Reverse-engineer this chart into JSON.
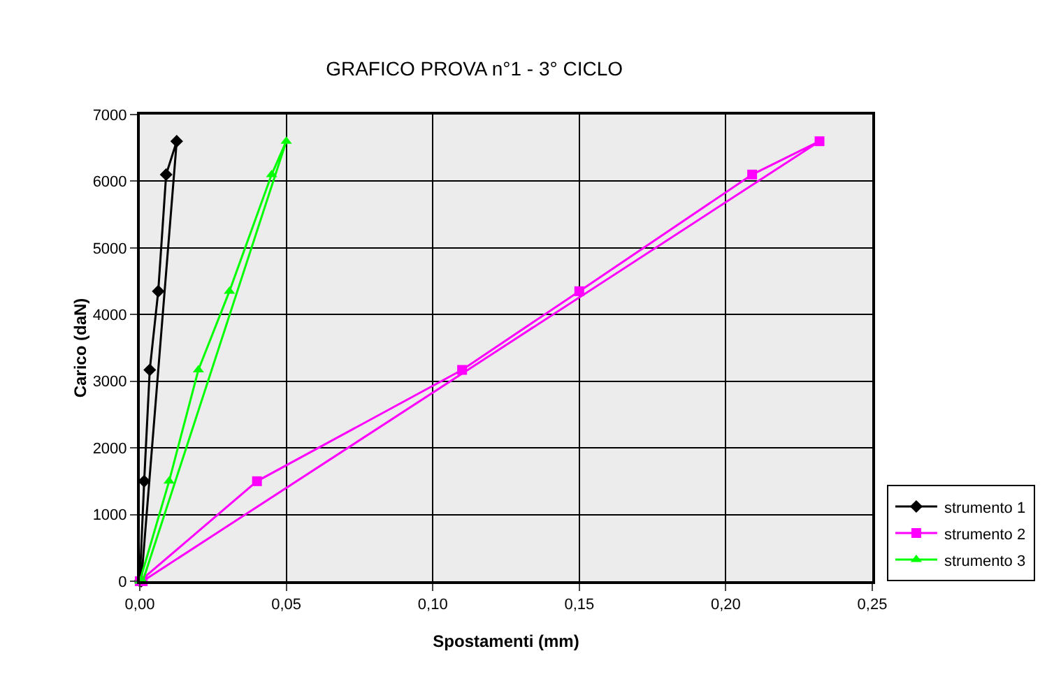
{
  "chart_data": {
    "type": "line",
    "title": "GRAFICO PROVA n°1 - 3° CICLO",
    "xlabel": "Spostamenti (mm)",
    "ylabel": "Carico (daN)",
    "xlim": [
      0,
      0.25
    ],
    "xticks": [
      {
        "value": 0,
        "label": "0,00"
      },
      {
        "value": 0.05,
        "label": "0,05"
      },
      {
        "value": 0.1,
        "label": "0,10"
      },
      {
        "value": 0.15,
        "label": "0,15"
      },
      {
        "value": 0.2,
        "label": "0,20"
      },
      {
        "value": 0.25,
        "label": "0,25"
      }
    ],
    "ylim": [
      0,
      7000
    ],
    "yticks": [
      0,
      1000,
      2000,
      3000,
      4000,
      5000,
      6000,
      7000
    ],
    "grid": true,
    "legend": "bottom right",
    "series": [
      {
        "name": "strumento 1",
        "color": "#000000",
        "marker": "diamond",
        "x": [
          0,
          0.0015,
          0.0034,
          0.0063,
          0.009,
          0.0126,
          0.0005
        ],
        "values": [
          0,
          1500,
          3170,
          4350,
          6100,
          6600,
          0
        ]
      },
      {
        "name": "strumento 2",
        "color": "#ff00ff",
        "marker": "square",
        "x": [
          0,
          0.04,
          0.11,
          0.15,
          0.209,
          0.232,
          0.001
        ],
        "values": [
          0,
          1500,
          3170,
          4350,
          6100,
          6600,
          0
        ]
      },
      {
        "name": "strumento 3",
        "color": "#00ff00",
        "marker": "triangle",
        "x": [
          0,
          0.01,
          0.02,
          0.0306,
          0.045,
          0.05,
          0.001
        ],
        "values": [
          0,
          1500,
          3170,
          4350,
          6100,
          6600,
          0
        ]
      }
    ]
  }
}
